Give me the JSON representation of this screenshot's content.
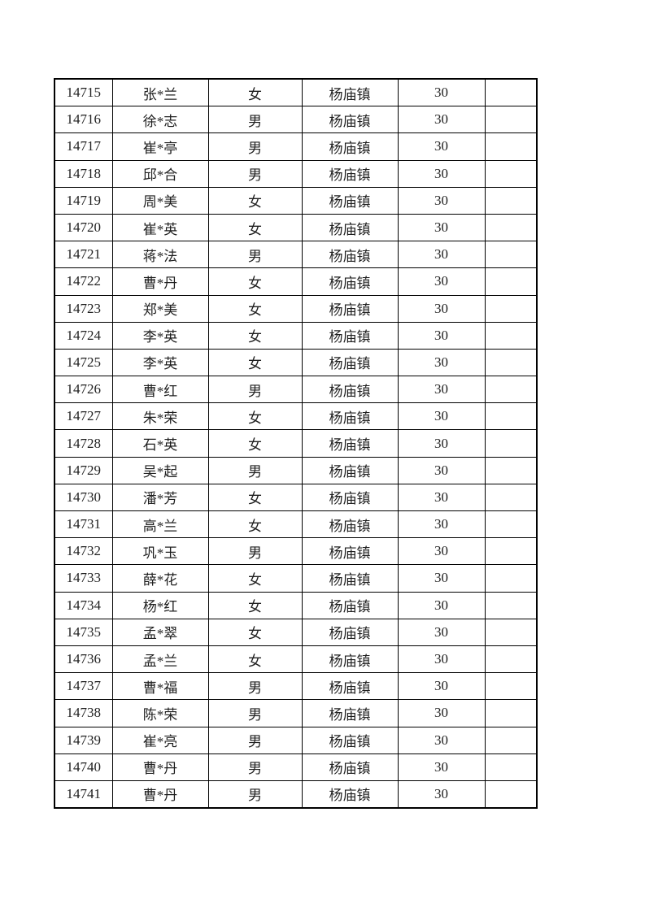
{
  "page": {
    "background_color": "#ffffff",
    "text_color": "#1f1f1f",
    "table_border_color": "#000000"
  },
  "table": {
    "fields": [
      "id",
      "name",
      "gender",
      "town",
      "count",
      "blank"
    ],
    "rows": [
      {
        "id": "14715",
        "name": "张*兰",
        "gender": "女",
        "town": "杨庙镇",
        "count": "30",
        "blank": ""
      },
      {
        "id": "14716",
        "name": "徐*志",
        "gender": "男",
        "town": "杨庙镇",
        "count": "30",
        "blank": ""
      },
      {
        "id": "14717",
        "name": "崔*亭",
        "gender": "男",
        "town": "杨庙镇",
        "count": "30",
        "blank": ""
      },
      {
        "id": "14718",
        "name": "邱*合",
        "gender": "男",
        "town": "杨庙镇",
        "count": "30",
        "blank": ""
      },
      {
        "id": "14719",
        "name": "周*美",
        "gender": "女",
        "town": "杨庙镇",
        "count": "30",
        "blank": ""
      },
      {
        "id": "14720",
        "name": "崔*英",
        "gender": "女",
        "town": "杨庙镇",
        "count": "30",
        "blank": ""
      },
      {
        "id": "14721",
        "name": "蒋*法",
        "gender": "男",
        "town": "杨庙镇",
        "count": "30",
        "blank": ""
      },
      {
        "id": "14722",
        "name": "曹*丹",
        "gender": "女",
        "town": "杨庙镇",
        "count": "30",
        "blank": ""
      },
      {
        "id": "14723",
        "name": "郑*美",
        "gender": "女",
        "town": "杨庙镇",
        "count": "30",
        "blank": ""
      },
      {
        "id": "14724",
        "name": "李*英",
        "gender": "女",
        "town": "杨庙镇",
        "count": "30",
        "blank": ""
      },
      {
        "id": "14725",
        "name": "李*英",
        "gender": "女",
        "town": "杨庙镇",
        "count": "30",
        "blank": ""
      },
      {
        "id": "14726",
        "name": "曹*红",
        "gender": "男",
        "town": "杨庙镇",
        "count": "30",
        "blank": ""
      },
      {
        "id": "14727",
        "name": "朱*荣",
        "gender": "女",
        "town": "杨庙镇",
        "count": "30",
        "blank": ""
      },
      {
        "id": "14728",
        "name": "石*英",
        "gender": "女",
        "town": "杨庙镇",
        "count": "30",
        "blank": ""
      },
      {
        "id": "14729",
        "name": "吴*起",
        "gender": "男",
        "town": "杨庙镇",
        "count": "30",
        "blank": ""
      },
      {
        "id": "14730",
        "name": "潘*芳",
        "gender": "女",
        "town": "杨庙镇",
        "count": "30",
        "blank": ""
      },
      {
        "id": "14731",
        "name": "高*兰",
        "gender": "女",
        "town": "杨庙镇",
        "count": "30",
        "blank": ""
      },
      {
        "id": "14732",
        "name": "巩*玉",
        "gender": "男",
        "town": "杨庙镇",
        "count": "30",
        "blank": ""
      },
      {
        "id": "14733",
        "name": "薛*花",
        "gender": "女",
        "town": "杨庙镇",
        "count": "30",
        "blank": ""
      },
      {
        "id": "14734",
        "name": "杨*红",
        "gender": "女",
        "town": "杨庙镇",
        "count": "30",
        "blank": ""
      },
      {
        "id": "14735",
        "name": "孟*翠",
        "gender": "女",
        "town": "杨庙镇",
        "count": "30",
        "blank": ""
      },
      {
        "id": "14736",
        "name": "孟*兰",
        "gender": "女",
        "town": "杨庙镇",
        "count": "30",
        "blank": ""
      },
      {
        "id": "14737",
        "name": "曹*福",
        "gender": "男",
        "town": "杨庙镇",
        "count": "30",
        "blank": ""
      },
      {
        "id": "14738",
        "name": "陈*荣",
        "gender": "男",
        "town": "杨庙镇",
        "count": "30",
        "blank": ""
      },
      {
        "id": "14739",
        "name": "崔*亮",
        "gender": "男",
        "town": "杨庙镇",
        "count": "30",
        "blank": ""
      },
      {
        "id": "14740",
        "name": "曹*丹",
        "gender": "男",
        "town": "杨庙镇",
        "count": "30",
        "blank": ""
      },
      {
        "id": "14741",
        "name": "曹*丹",
        "gender": "男",
        "town": "杨庙镇",
        "count": "30",
        "blank": ""
      }
    ]
  }
}
